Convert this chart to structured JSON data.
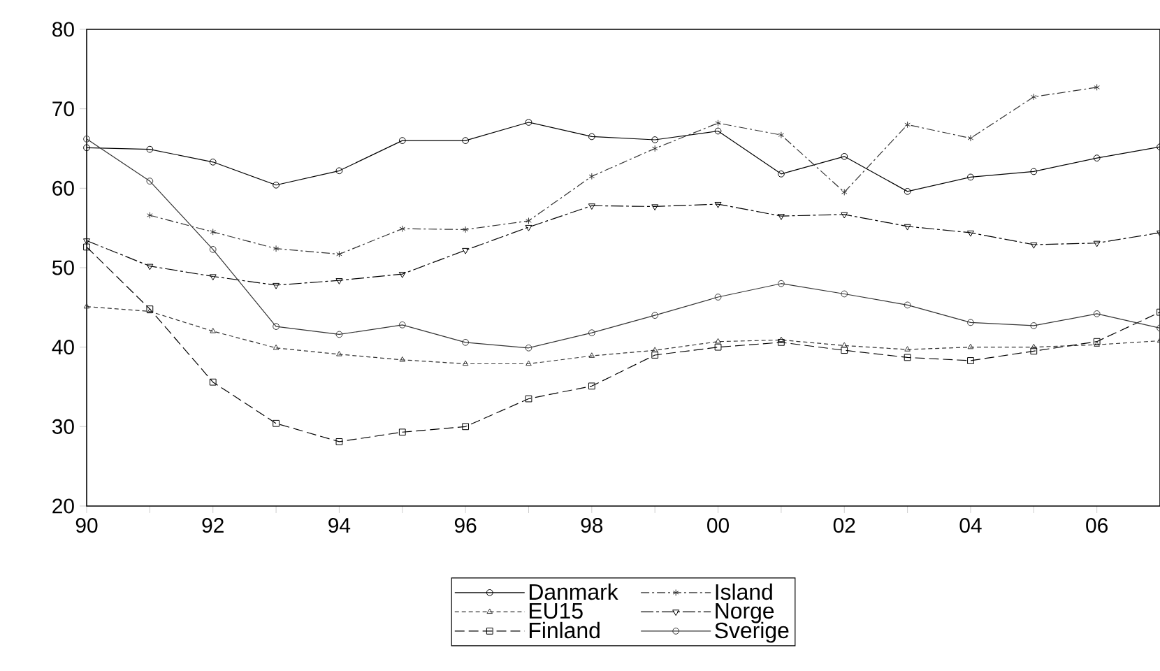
{
  "chart_data": {
    "type": "line",
    "x": [
      1990,
      1991,
      1992,
      1993,
      1994,
      1995,
      1996,
      1997,
      1998,
      1999,
      2000,
      2001,
      2002,
      2003,
      2004,
      2005,
      2006,
      2007
    ],
    "series": [
      {
        "name": "Danmark",
        "color": "#000000",
        "marker": "circle",
        "line_style": "solid",
        "values": [
          65.1,
          64.9,
          63.3,
          60.4,
          62.2,
          66.0,
          66.0,
          68.3,
          66.5,
          66.1,
          67.2,
          61.8,
          64.0,
          59.6,
          61.4,
          62.1,
          63.8,
          65.2
        ]
      },
      {
        "name": "Island",
        "color": "#333333",
        "marker": "cross",
        "line_style": "dashed",
        "values": [
          null,
          56.6,
          54.5,
          52.4,
          51.7,
          54.9,
          54.8,
          55.9,
          61.5,
          65.0,
          68.2,
          66.7,
          59.5,
          68.0,
          66.3,
          71.5,
          72.7,
          null
        ]
      },
      {
        "name": "EU15",
        "color": "#333333",
        "marker": "triangle",
        "line_style": "dashed",
        "values": [
          45.1,
          44.5,
          42.0,
          39.9,
          39.1,
          38.4,
          37.9,
          37.9,
          38.9,
          39.6,
          40.7,
          40.9,
          40.2,
          39.7,
          40.0,
          40.0,
          40.3,
          40.8
        ]
      },
      {
        "name": "Norge",
        "color": "#000000",
        "marker": "triangle down",
        "line_style": "dashed",
        "values": [
          53.4,
          50.2,
          48.9,
          47.8,
          48.4,
          49.2,
          52.2,
          55.1,
          57.8,
          57.7,
          58.0,
          56.5,
          56.7,
          55.2,
          54.4,
          52.9,
          53.1,
          54.4
        ]
      },
      {
        "name": "Finland",
        "color": "#000000",
        "marker": "square",
        "line_style": "dashed",
        "values": [
          52.6,
          44.8,
          35.6,
          30.4,
          28.1,
          29.3,
          30.0,
          33.5,
          35.1,
          39.0,
          40.0,
          40.6,
          39.6,
          38.7,
          38.3,
          39.5,
          40.7,
          44.4
        ]
      },
      {
        "name": "Sverige",
        "color": "#333333",
        "marker": "circle",
        "line_style": "solid",
        "values": [
          66.2,
          60.9,
          52.3,
          42.6,
          41.6,
          42.8,
          40.6,
          39.9,
          41.8,
          44.0,
          46.3,
          48.0,
          46.7,
          45.3,
          43.1,
          42.7,
          44.2,
          42.4
        ]
      }
    ],
    "xlim": [
      1990,
      2007
    ],
    "xticks": [
      {
        "value": 1990,
        "label": "90"
      },
      {
        "value": 1991,
        "label": null
      },
      {
        "value": 1992,
        "label": "92"
      },
      {
        "value": 1993,
        "label": null
      },
      {
        "value": 1994,
        "label": "94"
      },
      {
        "value": 1995,
        "label": null
      },
      {
        "value": 1996,
        "label": "96"
      },
      {
        "value": 1997,
        "label": null
      },
      {
        "value": 1998,
        "label": "98"
      },
      {
        "value": 1999,
        "label": null
      },
      {
        "value": 2000,
        "label": "00"
      },
      {
        "value": 2001,
        "label": null
      },
      {
        "value": 2002,
        "label": "02"
      },
      {
        "value": 2003,
        "label": null
      },
      {
        "value": 2004,
        "label": "04"
      },
      {
        "value": 2005,
        "label": null
      },
      {
        "value": 2006,
        "label": "06"
      }
    ],
    "ylim": [
      20,
      80
    ],
    "yticks": [
      20,
      30,
      40,
      50,
      60,
      70,
      80
    ],
    "grid": false,
    "legend": "bottom"
  }
}
